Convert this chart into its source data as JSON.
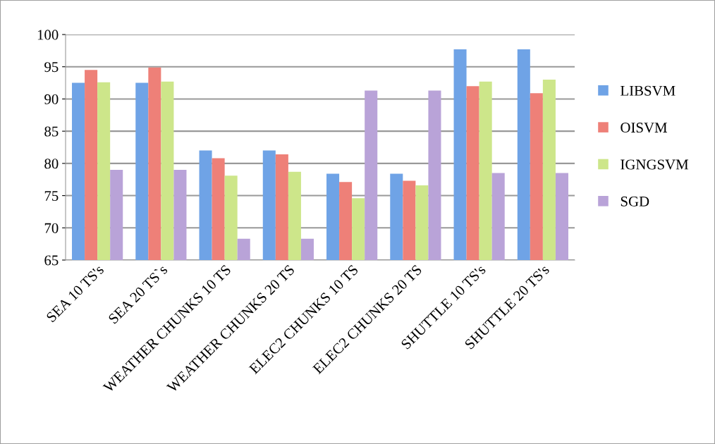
{
  "chart_data": {
    "type": "bar",
    "categories": [
      "SEA 10 TS's",
      "SEA 20 TS`s",
      "WEATHER CHUNKS 10 TS",
      "WEATHER CHUNKS 20 TS",
      "ELEC2 CHUNKS 10 TS",
      "ELEC2 CHUNKS 20 TS",
      "SHUTTLE 10 TS's",
      "SHUTTLE 20 TS's"
    ],
    "series": [
      {
        "name": "LIBSVM",
        "color": "#6fa3e6",
        "values": [
          92.5,
          92.5,
          82.0,
          82.0,
          78.4,
          78.4,
          97.7,
          97.7
        ]
      },
      {
        "name": "OISVM",
        "color": "#ee8078",
        "values": [
          94.5,
          94.9,
          80.8,
          81.4,
          77.1,
          77.3,
          92.0,
          90.9
        ]
      },
      {
        "name": "IGNGSVM",
        "color": "#cde68a",
        "values": [
          92.6,
          92.7,
          78.1,
          78.7,
          74.6,
          76.6,
          92.7,
          93.0
        ]
      },
      {
        "name": "SGD",
        "color": "#b9a3d8",
        "values": [
          79.0,
          79.0,
          68.3,
          68.3,
          91.3,
          91.3,
          78.5,
          78.5
        ]
      }
    ],
    "ylim": [
      65,
      100
    ],
    "yticks": [
      65,
      70,
      75,
      80,
      85,
      90,
      95,
      100
    ],
    "grid": "y",
    "legend": "right"
  }
}
